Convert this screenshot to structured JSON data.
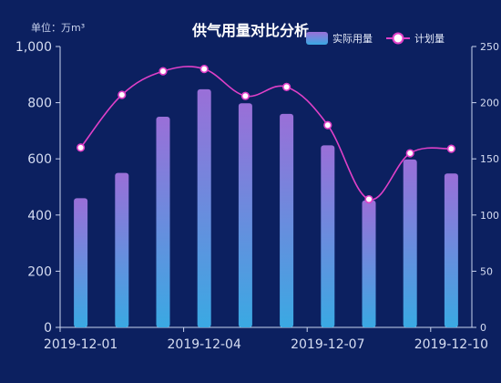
{
  "chart_data": {
    "type": "bar",
    "title": "供气用量对比分析",
    "unit_label": "单位：万m³",
    "categories": [
      "2019-12-01",
      "2019-12-02",
      "2019-12-03",
      "2019-12-04",
      "2019-12-05",
      "2019-12-06",
      "2019-12-07",
      "2019-12-08",
      "2019-12-09",
      "2019-12-10"
    ],
    "x_tick_labels": [
      "2019-12-01",
      "2019-12-04",
      "2019-12-07",
      "2019-12-10"
    ],
    "x_tick_indices": [
      0,
      3,
      6,
      9
    ],
    "series": [
      {
        "name": "实际用量",
        "type": "bar",
        "axis": "left",
        "values": [
          460,
          550,
          750,
          848,
          798,
          760,
          648,
          452,
          598,
          548
        ]
      },
      {
        "name": "计划量",
        "type": "line",
        "axis": "right",
        "smooth": true,
        "values": [
          160,
          207,
          228,
          230,
          206,
          214,
          180,
          114,
          155,
          159
        ]
      }
    ],
    "y_left": {
      "min": 0,
      "max": 1000,
      "ticks": [
        0,
        200,
        400,
        600,
        800,
        1000
      ],
      "tick_labels": [
        "0",
        "200",
        "400",
        "600",
        "800",
        "1,000"
      ]
    },
    "y_right": {
      "min": 0,
      "max": 250,
      "ticks": [
        0,
        50,
        100,
        150,
        200,
        250
      ],
      "tick_labels": [
        "0",
        "50",
        "100",
        "150",
        "200",
        "250"
      ]
    },
    "grid": false,
    "legend_position": "top-right"
  },
  "colors": {
    "background": "#0c2060",
    "bar_top": "#9a6fd8",
    "bar_bottom": "#3aa9e3",
    "line": "#e040c8",
    "marker_fill": "#ffffff",
    "axis": "#c9d3ee"
  }
}
